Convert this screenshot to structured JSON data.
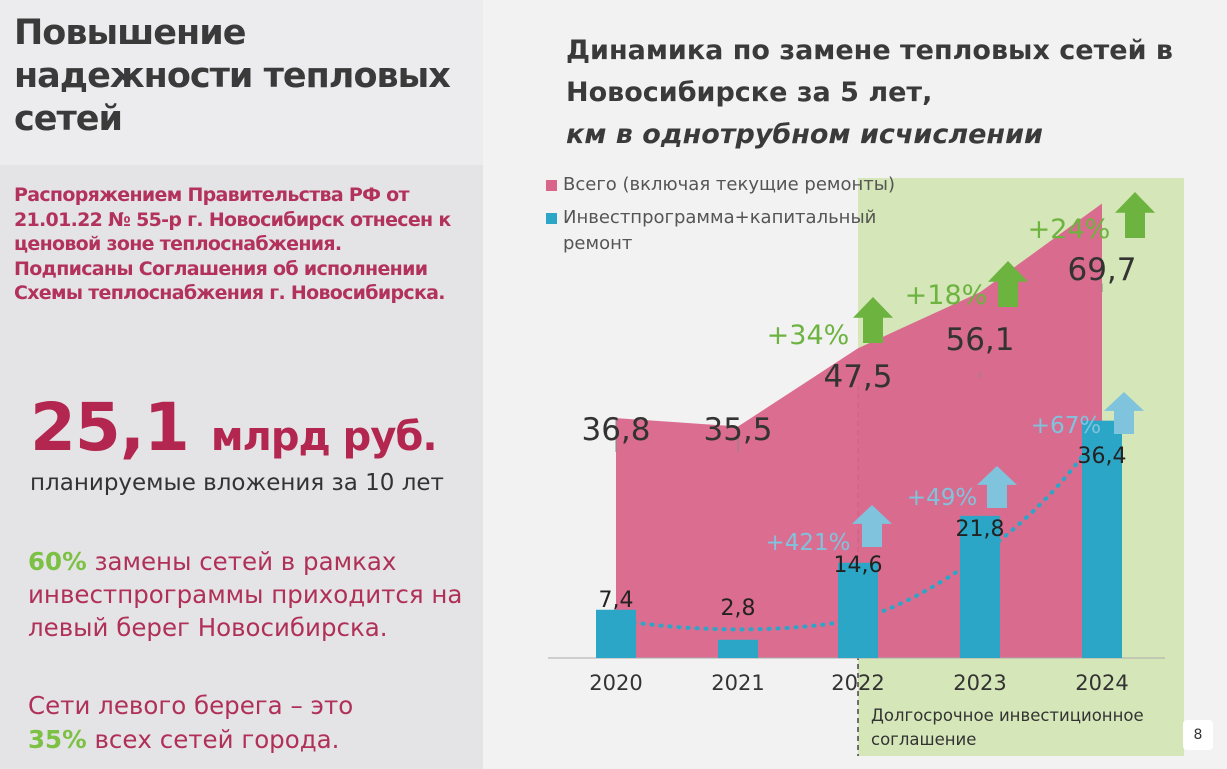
{
  "left": {
    "title": "Повышение надежности тепловых сетей",
    "decree": "Распоряжением Правительства РФ от 21.01.22 № 55-р г. Новосибирск отнесен к ценовой зоне теплоснабжения. Подписаны Соглашения об исполнении Схемы теплоснабжения г. Новосибирска.",
    "big_number": "25,1",
    "big_unit": "млрд руб.",
    "investment_caption": "планируемые вложения за 10 лет",
    "share_pct": "60%",
    "share_text": "замены сетей в рамках инвестпрограммы приходится на левый берег Новосибирска.",
    "left_share_prefix": "Сети левого берега – это",
    "left_share_pct": "35%",
    "left_share_suffix": "всех сетей города."
  },
  "chart_heading": {
    "line1": "Динамика по замене тепловых сетей в Новосибирске за 5 лет,",
    "line2": "км в однотрубном исчислении"
  },
  "footnote": "Долгосрочное инвестиционное соглашение",
  "page_number": "8",
  "colors": {
    "total": "#d9658b",
    "invest": "#2ca6c7",
    "growth_green": "#6db33f",
    "growth_blue": "#7fc3dd",
    "highlight": "#d5e6b8",
    "accent_red": "#b3264f"
  },
  "chart_data": {
    "type": "area",
    "categories": [
      "2020",
      "2021",
      "2022",
      "2023",
      "2024"
    ],
    "series": [
      {
        "name": "Всего (включая текущие ремонты)",
        "values": [
          36.8,
          35.5,
          47.5,
          56.1,
          69.7
        ],
        "labels": [
          "36,8",
          "35,5",
          "47,5",
          "56,1",
          "69,7"
        ],
        "growth": [
          "",
          "",
          "+34%",
          "+18%",
          "+24%"
        ],
        "color": "#d9658b",
        "kind": "area"
      },
      {
        "name": "Инвестпрограмма+капитальный ремонт",
        "values": [
          7.4,
          2.8,
          14.6,
          21.8,
          36.4
        ],
        "labels": [
          "7,4",
          "2,8",
          "14,6",
          "21,8",
          "36,4"
        ],
        "growth": [
          "",
          "",
          "+421%",
          "+49%",
          "+67%"
        ],
        "color": "#2ca6c7",
        "kind": "bar"
      }
    ],
    "trendline": "dotted",
    "highlight_from": "2022",
    "xlabel": "",
    "ylabel": "",
    "ylim": [
      0,
      80
    ],
    "legend_position": "top-left",
    "grid": false
  }
}
